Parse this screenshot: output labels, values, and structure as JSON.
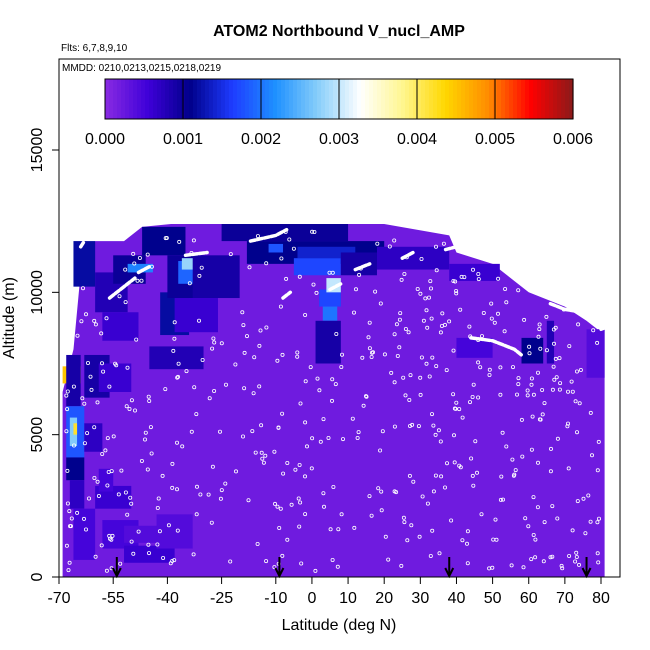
{
  "chart_data": {
    "type": "heatmap",
    "title": "ATOM2 Northbound V_nucl_AMP",
    "flights_label": "Flts: 6,7,8,9,10",
    "dates_label": "MMDD: 0210,0213,0215,0218,0219",
    "xlabel": "Latitude (deg N)",
    "ylabel": "Altitude (m)",
    "xlim": [
      -70,
      85
    ],
    "ylim": [
      0,
      17500
    ],
    "x_tick_labels": [
      "-70",
      "-55",
      "-40",
      "-25",
      "-10",
      "0",
      "10",
      "20",
      "30",
      "40",
      "50",
      "60",
      "70",
      "80"
    ],
    "x_tick_values": [
      -70,
      -55,
      -40,
      -25,
      -10,
      0,
      10,
      20,
      30,
      40,
      50,
      60,
      70,
      80
    ],
    "y_tick_labels": [
      "0",
      "5000",
      "10000",
      "15000"
    ],
    "y_tick_values": [
      0,
      5000,
      10000,
      15000
    ],
    "colorbar": {
      "range": [
        0,
        0.006
      ],
      "tick_labels": [
        "0.000",
        "0.001",
        "0.002",
        "0.003",
        "0.004",
        "0.005",
        "0.006"
      ],
      "tick_values": [
        0,
        0.001,
        0.002,
        0.003,
        0.004,
        0.005,
        0.006
      ],
      "colors": [
        "#8a2be2",
        "#3f00d9",
        "#00008b",
        "#1e3cff",
        "#1e90ff",
        "#87cefa",
        "#ffffff",
        "#fff68f",
        "#ffd700",
        "#ff8c00",
        "#ff0000",
        "#8b1a1a"
      ]
    },
    "background_value": 0.0002,
    "envelope": [
      [
        -69,
        6500
      ],
      [
        -66,
        8000
      ],
      [
        -64,
        10700
      ],
      [
        -60,
        11800
      ],
      [
        -52,
        11800
      ],
      [
        -47,
        12300
      ],
      [
        -39,
        12400
      ],
      [
        -20,
        12400
      ],
      [
        -3,
        12400
      ],
      [
        20,
        12400
      ],
      [
        38,
        12000
      ],
      [
        40,
        11400
      ],
      [
        50,
        11000
      ],
      [
        60,
        10000
      ],
      [
        70,
        9500
      ],
      [
        76,
        9000
      ],
      [
        79,
        8700
      ],
      [
        81,
        8700
      ],
      [
        81,
        0
      ],
      [
        -69,
        0
      ]
    ],
    "cells": [
      {
        "x0": -69,
        "x1": -64,
        "y0": 6800,
        "y1": 7400,
        "v": 0.0045
      },
      {
        "x0": -68,
        "x1": -64,
        "y0": 6000,
        "y1": 7800,
        "v": 0.0009
      },
      {
        "x0": -68,
        "x1": -63,
        "y0": 4200,
        "y1": 6000,
        "v": 0.0018
      },
      {
        "x0": -67,
        "x1": -65,
        "y0": 4600,
        "y1": 5600,
        "v": 0.0027
      },
      {
        "x0": -66,
        "x1": -65,
        "y0": 5000,
        "y1": 5400,
        "v": 0.0042
      },
      {
        "x0": -68,
        "x1": -63,
        "y0": 3400,
        "y1": 4200,
        "v": 0.0011
      },
      {
        "x0": -67,
        "x1": -63,
        "y0": 2400,
        "y1": 3400,
        "v": 0.0007
      },
      {
        "x0": -66,
        "x1": -60,
        "y0": 600,
        "y1": 2400,
        "v": 0.0005
      },
      {
        "x0": -63,
        "x1": -56,
        "y0": 6300,
        "y1": 7800,
        "v": 0.0009
      },
      {
        "x0": -59,
        "x1": -50,
        "y0": 6500,
        "y1": 7500,
        "v": 0.0006
      },
      {
        "x0": -60,
        "x1": -50,
        "y0": 2400,
        "y1": 3200,
        "v": 0.0006
      },
      {
        "x0": -58,
        "x1": -48,
        "y0": 1000,
        "y1": 2000,
        "v": 0.0005
      },
      {
        "x0": -52,
        "x1": -40,
        "y0": 1200,
        "y1": 1800,
        "v": 0.0004
      },
      {
        "x0": -52,
        "x1": -38,
        "y0": 500,
        "y1": 1100,
        "v": 0.0006
      },
      {
        "x0": -43,
        "x1": -33,
        "y0": 1000,
        "y1": 2200,
        "v": 0.0004
      },
      {
        "x0": -66,
        "x1": -60,
        "y0": 10200,
        "y1": 11800,
        "v": 0.0012
      },
      {
        "x0": -60,
        "x1": -51,
        "y0": 9300,
        "y1": 10700,
        "v": 0.0008
      },
      {
        "x0": -58,
        "x1": -48,
        "y0": 8300,
        "y1": 9300,
        "v": 0.0006
      },
      {
        "x0": -55,
        "x1": -46,
        "y0": 10300,
        "y1": 11300,
        "v": 0.001
      },
      {
        "x0": -51,
        "x1": -44,
        "y0": 10700,
        "y1": 11000,
        "v": 0.0021
      },
      {
        "x0": -47,
        "x1": -35,
        "y0": 11300,
        "y1": 12300,
        "v": 0.0011
      },
      {
        "x0": -42,
        "x1": -34,
        "y0": 8500,
        "y1": 10000,
        "v": 0.0012
      },
      {
        "x0": -40,
        "x1": -30,
        "y0": 9800,
        "y1": 11300,
        "v": 0.001
      },
      {
        "x0": -37,
        "x1": -29,
        "y0": 10300,
        "y1": 11100,
        "v": 0.0019
      },
      {
        "x0": -36,
        "x1": -30,
        "y0": 10800,
        "y1": 11200,
        "v": 0.0028
      },
      {
        "x0": -45,
        "x1": -30,
        "y0": 7300,
        "y1": 8100,
        "v": 0.0008
      },
      {
        "x0": -33,
        "x1": -20,
        "y0": 9800,
        "y1": 11300,
        "v": 0.0009
      },
      {
        "x0": -38,
        "x1": -26,
        "y0": 8600,
        "y1": 9800,
        "v": 0.0006
      },
      {
        "x0": -25,
        "x1": 10,
        "y0": 11800,
        "y1": 12400,
        "v": 0.001
      },
      {
        "x0": -18,
        "x1": 20,
        "y0": 11000,
        "y1": 11800,
        "v": 0.0011
      },
      {
        "x0": -12,
        "x1": -8,
        "y0": 11400,
        "y1": 11700,
        "v": 0.0018
      },
      {
        "x0": -4,
        "x1": 12,
        "y0": 11200,
        "y1": 11600,
        "v": 0.0014
      },
      {
        "x0": -5,
        "x1": 8,
        "y0": 10600,
        "y1": 11200,
        "v": 0.0017
      },
      {
        "x0": 2,
        "x1": 8,
        "y0": 9500,
        "y1": 10100,
        "v": 0.0017
      },
      {
        "x0": 3,
        "x1": 7,
        "y0": 9000,
        "y1": 9500,
        "v": 0.002
      },
      {
        "x0": 4,
        "x1": 8,
        "y0": 10000,
        "y1": 10500,
        "v": 0.003
      },
      {
        "x0": 1,
        "x1": 8,
        "y0": 7500,
        "y1": 9000,
        "v": 0.0009
      },
      {
        "x0": 8,
        "x1": 18,
        "y0": 10600,
        "y1": 11400,
        "v": 0.0009
      },
      {
        "x0": 18,
        "x1": 38,
        "y0": 10800,
        "y1": 11600,
        "v": 0.0007
      },
      {
        "x0": 38,
        "x1": 52,
        "y0": 10400,
        "y1": 11000,
        "v": 0.0006
      },
      {
        "x0": 58,
        "x1": 64,
        "y0": 7500,
        "y1": 8400,
        "v": 0.0011
      },
      {
        "x0": 65,
        "x1": 67,
        "y0": 7500,
        "y1": 9000,
        "v": 0.0008
      },
      {
        "x0": 40,
        "x1": 50,
        "y0": 7700,
        "y1": 8400,
        "v": 0.0005
      },
      {
        "x0": 76,
        "x1": 81,
        "y0": 7000,
        "y1": 8700,
        "v": 0.0004
      },
      {
        "x0": -63,
        "x1": -58,
        "y0": 4400,
        "y1": 5400,
        "v": 0.0007
      },
      {
        "x0": -59,
        "x1": -55,
        "y0": 3000,
        "y1": 3800,
        "v": 0.0005
      }
    ],
    "flight_tracks": [
      [
        [
          -64,
          11600
        ],
        [
          -63,
          11800
        ]
      ],
      [
        [
          -56,
          9800
        ],
        [
          -53,
          10100
        ],
        [
          -49,
          10500
        ]
      ],
      [
        [
          -48,
          10700
        ],
        [
          -45,
          10900
        ]
      ],
      [
        [
          -35,
          11300
        ],
        [
          -29,
          11400
        ]
      ],
      [
        [
          -17,
          11800
        ],
        [
          -10,
          12000
        ],
        [
          -7,
          12200
        ]
      ],
      [
        [
          -8,
          9800
        ],
        [
          -6,
          10000
        ]
      ],
      [
        [
          5,
          10100
        ],
        [
          8,
          10300
        ]
      ],
      [
        [
          12,
          10800
        ],
        [
          16,
          11000
        ]
      ],
      [
        [
          25,
          11200
        ],
        [
          28,
          11400
        ]
      ],
      [
        [
          37,
          11500
        ],
        [
          40,
          11600
        ]
      ],
      [
        [
          44,
          8400
        ],
        [
          50,
          8300
        ],
        [
          56,
          8000
        ],
        [
          58,
          7800
        ]
      ],
      [
        [
          66,
          9600
        ],
        [
          70,
          9400
        ],
        [
          75,
          9300
        ]
      ],
      [
        [
          80,
          8700
        ],
        [
          82,
          8800
        ]
      ]
    ],
    "arrow_lats": [
      -54,
      -9,
      38,
      76
    ]
  }
}
